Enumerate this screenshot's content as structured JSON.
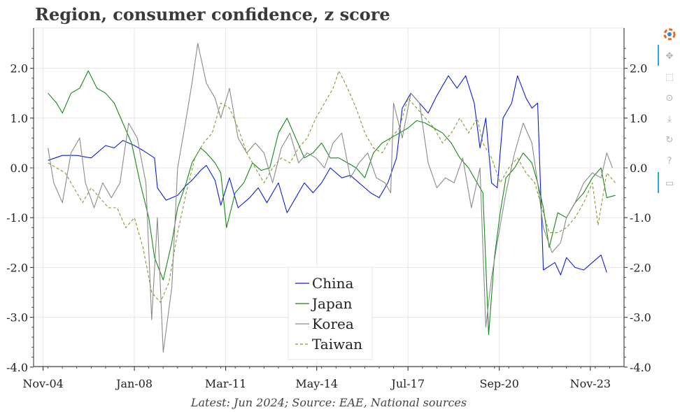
{
  "title": "Region, consumer confidence, z score",
  "caption": "Latest: Jun 2024; Source: EAE, National sources",
  "toolbar": {
    "items": [
      "bokeh-logo",
      "pan",
      "box-zoom",
      "wheel-zoom",
      "save",
      "reset",
      "help",
      "hover"
    ]
  },
  "chart_data": {
    "type": "line",
    "title": "Region, consumer confidence, z score",
    "xlabel": "",
    "ylabel": "",
    "ylim": [
      -4.0,
      2.5
    ],
    "xlim": [
      2004.5,
      2025.0
    ],
    "yticks": [
      -4.0,
      -3.0,
      -2.0,
      -1.0,
      0.0,
      1.0,
      2.0
    ],
    "ytick_labels": [
      "-4.0",
      "-3.0",
      "-2.0",
      "-1.0",
      "0.0",
      "1.0",
      "2.0"
    ],
    "xticks": [
      2004.83,
      2008.0,
      2011.17,
      2014.33,
      2017.5,
      2020.67,
      2023.83
    ],
    "xtick_labels": [
      "Nov-04",
      "Jan-08",
      "Mar-11",
      "May-14",
      "Jul-17",
      "Sep-20",
      "Nov-23"
    ],
    "legend_position": "bottom-center",
    "series": [
      {
        "name": "China",
        "color": "#0a1fd6",
        "dash": "solid",
        "points": [
          [
            2005.0,
            0.15
          ],
          [
            2005.5,
            0.25
          ],
          [
            2006.0,
            0.25
          ],
          [
            2006.5,
            0.2
          ],
          [
            2007.0,
            0.45
          ],
          [
            2007.3,
            0.4
          ],
          [
            2007.6,
            0.55
          ],
          [
            2008.0,
            0.45
          ],
          [
            2008.3,
            0.35
          ],
          [
            2008.7,
            0.2
          ],
          [
            2008.8,
            -0.4
          ],
          [
            2009.1,
            -0.65
          ],
          [
            2009.5,
            -0.55
          ],
          [
            2009.8,
            -0.35
          ],
          [
            2010.0,
            -0.25
          ],
          [
            2010.3,
            -0.05
          ],
          [
            2010.5,
            0.05
          ],
          [
            2010.8,
            -0.25
          ],
          [
            2011.0,
            -0.75
          ],
          [
            2011.3,
            -0.2
          ],
          [
            2011.6,
            -0.8
          ],
          [
            2012.0,
            -0.6
          ],
          [
            2012.3,
            -0.4
          ],
          [
            2012.6,
            -0.7
          ],
          [
            2013.0,
            -0.3
          ],
          [
            2013.3,
            -0.9
          ],
          [
            2013.6,
            -0.6
          ],
          [
            2013.9,
            -0.3
          ],
          [
            2014.2,
            -0.5
          ],
          [
            2014.5,
            -0.3
          ],
          [
            2014.8,
            0.0
          ],
          [
            2015.2,
            -0.2
          ],
          [
            2015.5,
            -0.15
          ],
          [
            2015.8,
            -0.3
          ],
          [
            2016.0,
            -0.4
          ],
          [
            2016.2,
            -0.5
          ],
          [
            2016.5,
            -0.6
          ],
          [
            2016.8,
            -0.3
          ],
          [
            2017.1,
            0.2
          ],
          [
            2017.3,
            1.2
          ],
          [
            2017.6,
            1.5
          ],
          [
            2017.9,
            1.3
          ],
          [
            2018.2,
            1.1
          ],
          [
            2018.5,
            1.45
          ],
          [
            2018.9,
            1.85
          ],
          [
            2019.2,
            1.6
          ],
          [
            2019.5,
            1.85
          ],
          [
            2019.8,
            1.3
          ],
          [
            2020.0,
            0.4
          ],
          [
            2020.2,
            1.0
          ],
          [
            2020.4,
            -0.3
          ],
          [
            2020.6,
            -0.4
          ],
          [
            2020.8,
            1.0
          ],
          [
            2021.1,
            1.3
          ],
          [
            2021.3,
            1.85
          ],
          [
            2021.6,
            1.4
          ],
          [
            2021.8,
            1.2
          ],
          [
            2022.0,
            1.3
          ],
          [
            2022.2,
            -2.05
          ],
          [
            2022.6,
            -1.9
          ],
          [
            2022.8,
            -2.15
          ],
          [
            2023.0,
            -1.8
          ],
          [
            2023.3,
            -2.0
          ],
          [
            2023.6,
            -2.05
          ],
          [
            2023.9,
            -1.9
          ],
          [
            2024.2,
            -1.75
          ],
          [
            2024.4,
            -2.1
          ]
        ]
      },
      {
        "name": "Japan",
        "color": "#138a12",
        "dash": "solid",
        "points": [
          [
            2005.0,
            1.5
          ],
          [
            2005.3,
            1.3
          ],
          [
            2005.5,
            1.1
          ],
          [
            2005.8,
            1.5
          ],
          [
            2006.1,
            1.6
          ],
          [
            2006.4,
            1.95
          ],
          [
            2006.7,
            1.6
          ],
          [
            2007.0,
            1.5
          ],
          [
            2007.3,
            1.3
          ],
          [
            2007.6,
            0.9
          ],
          [
            2007.9,
            0.5
          ],
          [
            2008.2,
            -0.3
          ],
          [
            2008.5,
            -1.0
          ],
          [
            2008.7,
            -1.8
          ],
          [
            2009.0,
            -2.25
          ],
          [
            2009.3,
            -1.5
          ],
          [
            2009.5,
            -0.8
          ],
          [
            2009.8,
            -0.3
          ],
          [
            2010.0,
            0.1
          ],
          [
            2010.3,
            0.4
          ],
          [
            2010.5,
            0.3
          ],
          [
            2010.8,
            0.1
          ],
          [
            2011.0,
            -0.1
          ],
          [
            2011.2,
            -1.2
          ],
          [
            2011.5,
            -0.5
          ],
          [
            2011.8,
            -0.3
          ],
          [
            2012.1,
            0.1
          ],
          [
            2012.4,
            -0.05
          ],
          [
            2012.7,
            0.0
          ],
          [
            2013.0,
            0.7
          ],
          [
            2013.3,
            1.0
          ],
          [
            2013.6,
            0.6
          ],
          [
            2013.9,
            0.2
          ],
          [
            2014.2,
            0.3
          ],
          [
            2014.5,
            0.5
          ],
          [
            2014.8,
            0.2
          ],
          [
            2015.1,
            0.2
          ],
          [
            2015.4,
            0.1
          ],
          [
            2015.7,
            0.0
          ],
          [
            2016.0,
            -0.2
          ],
          [
            2016.3,
            0.3
          ],
          [
            2016.6,
            0.5
          ],
          [
            2016.9,
            0.6
          ],
          [
            2017.2,
            0.7
          ],
          [
            2017.5,
            0.8
          ],
          [
            2017.8,
            0.95
          ],
          [
            2018.1,
            0.9
          ],
          [
            2018.4,
            0.8
          ],
          [
            2018.7,
            0.7
          ],
          [
            2019.0,
            0.5
          ],
          [
            2019.3,
            0.2
          ],
          [
            2019.6,
            0.0
          ],
          [
            2019.9,
            -0.3
          ],
          [
            2020.1,
            -0.5
          ],
          [
            2020.3,
            -3.35
          ],
          [
            2020.5,
            -1.8
          ],
          [
            2020.7,
            -0.9
          ],
          [
            2020.9,
            -0.2
          ],
          [
            2021.2,
            0.0
          ],
          [
            2021.5,
            0.3
          ],
          [
            2021.8,
            0.1
          ],
          [
            2022.0,
            -0.3
          ],
          [
            2022.2,
            -0.8
          ],
          [
            2022.4,
            -1.6
          ],
          [
            2022.7,
            -0.9
          ],
          [
            2023.0,
            -1.0
          ],
          [
            2023.3,
            -0.7
          ],
          [
            2023.6,
            -0.5
          ],
          [
            2023.9,
            -0.2
          ],
          [
            2024.2,
            0.0
          ],
          [
            2024.4,
            -0.6
          ],
          [
            2024.7,
            -0.55
          ]
        ]
      },
      {
        "name": "Korea",
        "color": "#8a8a8a",
        "dash": "solid",
        "points": [
          [
            2005.0,
            0.4
          ],
          [
            2005.2,
            -0.3
          ],
          [
            2005.5,
            -0.7
          ],
          [
            2005.8,
            0.3
          ],
          [
            2006.1,
            0.6
          ],
          [
            2006.3,
            -0.3
          ],
          [
            2006.6,
            -0.8
          ],
          [
            2006.9,
            -0.3
          ],
          [
            2007.2,
            -0.6
          ],
          [
            2007.5,
            -0.3
          ],
          [
            2007.8,
            0.9
          ],
          [
            2008.1,
            0.6
          ],
          [
            2008.4,
            -0.3
          ],
          [
            2008.6,
            -3.05
          ],
          [
            2008.8,
            -1.0
          ],
          [
            2009.0,
            -3.7
          ],
          [
            2009.3,
            -2.4
          ],
          [
            2009.5,
            0.0
          ],
          [
            2009.8,
            1.0
          ],
          [
            2010.0,
            1.7
          ],
          [
            2010.2,
            2.5
          ],
          [
            2010.5,
            1.7
          ],
          [
            2010.8,
            1.4
          ],
          [
            2011.0,
            1.0
          ],
          [
            2011.3,
            1.6
          ],
          [
            2011.6,
            0.6
          ],
          [
            2011.9,
            0.3
          ],
          [
            2012.2,
            0.5
          ],
          [
            2012.5,
            0.3
          ],
          [
            2012.8,
            -0.3
          ],
          [
            2013.1,
            0.4
          ],
          [
            2013.4,
            0.7
          ],
          [
            2013.7,
            0.1
          ],
          [
            2014.0,
            0.3
          ],
          [
            2014.3,
            0.2
          ],
          [
            2014.6,
            0.0
          ],
          [
            2014.9,
            0.5
          ],
          [
            2015.2,
            0.7
          ],
          [
            2015.5,
            -0.2
          ],
          [
            2015.8,
            0.1
          ],
          [
            2016.1,
            0.3
          ],
          [
            2016.4,
            -0.2
          ],
          [
            2016.7,
            -0.3
          ],
          [
            2016.9,
            -0.5
          ],
          [
            2017.0,
            1.3
          ],
          [
            2017.3,
            0.6
          ],
          [
            2017.6,
            1.5
          ],
          [
            2017.9,
            1.3
          ],
          [
            2018.2,
            0.1
          ],
          [
            2018.5,
            -0.4
          ],
          [
            2018.8,
            -0.2
          ],
          [
            2019.1,
            -0.3
          ],
          [
            2019.4,
            0.2
          ],
          [
            2019.7,
            -0.8
          ],
          [
            2020.0,
            0.0
          ],
          [
            2020.2,
            -3.2
          ],
          [
            2020.4,
            -2.2
          ],
          [
            2020.6,
            -1.5
          ],
          [
            2020.9,
            -0.5
          ],
          [
            2021.2,
            0.3
          ],
          [
            2021.5,
            0.9
          ],
          [
            2021.8,
            0.5
          ],
          [
            2022.0,
            -0.3
          ],
          [
            2022.2,
            -1.2
          ],
          [
            2022.5,
            -1.7
          ],
          [
            2022.8,
            -1.5
          ],
          [
            2023.0,
            -1.0
          ],
          [
            2023.3,
            -0.7
          ],
          [
            2023.6,
            -0.3
          ],
          [
            2023.9,
            -0.1
          ],
          [
            2024.2,
            -0.2
          ],
          [
            2024.4,
            0.3
          ],
          [
            2024.6,
            0.0
          ]
        ]
      },
      {
        "name": "Taiwan",
        "color": "#7f9a33",
        "dash": "dashed",
        "points": [
          [
            2005.0,
            0.1
          ],
          [
            2005.3,
            0.0
          ],
          [
            2005.6,
            -0.1
          ],
          [
            2005.9,
            -0.4
          ],
          [
            2006.2,
            -0.7
          ],
          [
            2006.5,
            -0.4
          ],
          [
            2006.8,
            -0.6
          ],
          [
            2007.1,
            -0.8
          ],
          [
            2007.4,
            -0.8
          ],
          [
            2007.7,
            -1.2
          ],
          [
            2008.0,
            -1.0
          ],
          [
            2008.3,
            -1.6
          ],
          [
            2008.6,
            -2.5
          ],
          [
            2008.9,
            -2.7
          ],
          [
            2009.2,
            -2.3
          ],
          [
            2009.5,
            -1.3
          ],
          [
            2009.8,
            -0.5
          ],
          [
            2010.1,
            0.2
          ],
          [
            2010.4,
            0.5
          ],
          [
            2010.7,
            0.7
          ],
          [
            2011.0,
            1.3
          ],
          [
            2011.3,
            1.2
          ],
          [
            2011.6,
            0.8
          ],
          [
            2011.9,
            0.3
          ],
          [
            2012.2,
            0.0
          ],
          [
            2012.5,
            -0.3
          ],
          [
            2012.8,
            0.0
          ],
          [
            2013.1,
            0.2
          ],
          [
            2013.4,
            0.1
          ],
          [
            2013.7,
            0.4
          ],
          [
            2014.0,
            0.6
          ],
          [
            2014.3,
            1.0
          ],
          [
            2014.6,
            1.3
          ],
          [
            2014.9,
            1.6
          ],
          [
            2015.1,
            1.95
          ],
          [
            2015.4,
            1.6
          ],
          [
            2015.7,
            1.2
          ],
          [
            2016.0,
            0.7
          ],
          [
            2016.3,
            0.4
          ],
          [
            2016.6,
            0.3
          ],
          [
            2016.9,
            0.6
          ],
          [
            2017.2,
            0.8
          ],
          [
            2017.5,
            1.4
          ],
          [
            2017.8,
            1.2
          ],
          [
            2018.1,
            1.0
          ],
          [
            2018.4,
            0.8
          ],
          [
            2018.7,
            0.5
          ],
          [
            2019.0,
            0.7
          ],
          [
            2019.3,
            1.0
          ],
          [
            2019.6,
            0.7
          ],
          [
            2019.9,
            1.0
          ],
          [
            2020.1,
            0.5
          ],
          [
            2020.4,
            0.2
          ],
          [
            2020.7,
            -0.3
          ],
          [
            2021.0,
            0.0
          ],
          [
            2021.3,
            0.2
          ],
          [
            2021.6,
            -0.1
          ],
          [
            2021.9,
            -0.3
          ],
          [
            2022.2,
            -0.9
          ],
          [
            2022.4,
            -1.3
          ],
          [
            2022.7,
            -1.3
          ],
          [
            2023.0,
            -1.2
          ],
          [
            2023.3,
            -1.0
          ],
          [
            2023.6,
            -0.7
          ],
          [
            2023.9,
            -0.3
          ],
          [
            2024.1,
            -1.15
          ],
          [
            2024.4,
            -0.1
          ],
          [
            2024.7,
            -0.3
          ]
        ]
      }
    ]
  }
}
